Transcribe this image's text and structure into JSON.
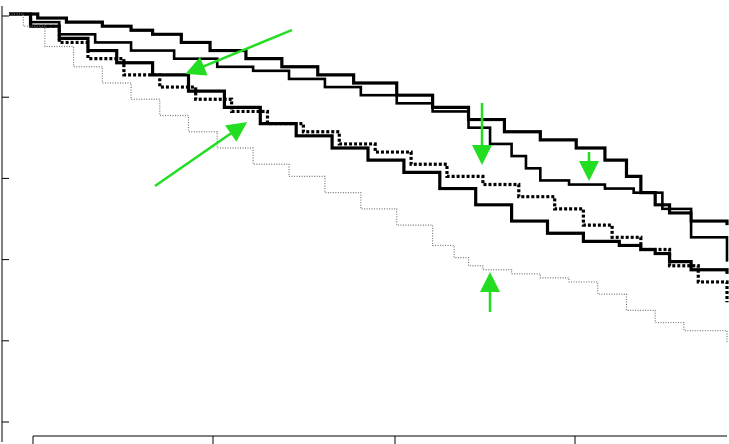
{
  "chart_data": {
    "type": "line",
    "step": true,
    "title": "",
    "xlabel": "",
    "ylabel": "",
    "xlim": [
      0,
      100
    ],
    "ylim": [
      0,
      100
    ],
    "x_ticks": [
      0,
      25,
      50,
      75
    ],
    "y_ticks": [
      0,
      20,
      40,
      60,
      80,
      100
    ],
    "tick_labels_shown": false,
    "grid": false,
    "legend": "none",
    "series": [
      {
        "style": "solid-thick",
        "color": "#000000",
        "x": [
          0,
          4,
          8,
          13,
          17,
          20,
          24,
          28,
          33,
          38,
          43,
          48,
          54,
          59,
          64,
          69,
          74,
          79,
          83,
          86,
          88,
          90,
          92,
          95,
          100
        ],
        "y": [
          100,
          99,
          98,
          97,
          96,
          95,
          93,
          91,
          89,
          87,
          85,
          83,
          80,
          77,
          74,
          71,
          69,
          67,
          64,
          60,
          56,
          53,
          51,
          49,
          48
        ]
      },
      {
        "style": "solid-medium",
        "color": "#000000",
        "x": [
          0,
          3,
          7,
          12,
          17,
          23,
          29,
          34,
          39,
          44,
          49,
          54,
          59,
          64,
          67,
          70,
          72,
          74,
          78,
          83,
          87,
          91,
          95,
          100
        ],
        "y": [
          100,
          98,
          95,
          93,
          91,
          89,
          87,
          86,
          84,
          82,
          80,
          78,
          76,
          72,
          68,
          65,
          62,
          59,
          58,
          57,
          56,
          52,
          45,
          39
        ]
      },
      {
        "style": "solid-thick",
        "color": "#000000",
        "x": [
          0,
          3,
          7,
          11,
          15,
          20,
          25,
          30,
          35,
          40,
          45,
          50,
          55,
          60,
          65,
          70,
          75,
          80,
          85,
          88,
          90,
          92,
          95,
          100
        ],
        "y": [
          100,
          97,
          94,
          91,
          88,
          85,
          81,
          77,
          73,
          70,
          67,
          64,
          61,
          57,
          53,
          49,
          46,
          44,
          43,
          42,
          41,
          39,
          37,
          36
        ]
      },
      {
        "style": "dotted-thick",
        "color": "#000000",
        "x": [
          0,
          3,
          7,
          11,
          16,
          21,
          26,
          31,
          36,
          41,
          46,
          51,
          56,
          61,
          66,
          71,
          76,
          80,
          84,
          88,
          92,
          96,
          100
        ],
        "y": [
          100,
          97,
          93,
          89,
          85,
          82,
          79,
          76,
          73,
          71,
          68,
          66,
          63,
          60,
          58,
          55,
          52,
          48,
          45,
          42,
          38,
          34,
          29
        ]
      },
      {
        "style": "dotted-thin",
        "color": "#777777",
        "x": [
          0,
          2,
          5,
          9,
          13,
          17,
          21,
          25,
          29,
          34,
          39,
          44,
          49,
          54,
          59,
          62,
          64,
          66,
          70,
          74,
          78,
          82,
          86,
          90,
          94,
          100
        ],
        "y": [
          100,
          97,
          92,
          87,
          83,
          79,
          75,
          71,
          67,
          63,
          60,
          56,
          52,
          48,
          43,
          40,
          38,
          37,
          36,
          35,
          34,
          31,
          27,
          24,
          22,
          19
        ]
      }
    ],
    "annotations": [
      {
        "type": "arrow",
        "color": "#22dd22"
      },
      {
        "type": "arrow",
        "color": "#22dd22"
      },
      {
        "type": "arrow",
        "color": "#22dd22"
      },
      {
        "type": "arrow",
        "color": "#22dd22"
      },
      {
        "type": "arrow",
        "color": "#22dd22"
      }
    ]
  }
}
